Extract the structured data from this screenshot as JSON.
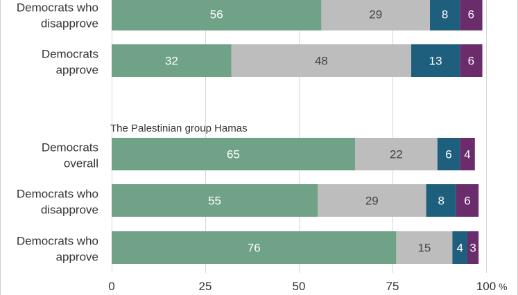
{
  "chart_data": {
    "type": "bar",
    "orientation": "horizontal",
    "stacked": true,
    "xlim": [
      0,
      100
    ],
    "x_ticks": [
      "0",
      "25",
      "50",
      "75",
      "100"
    ],
    "x_tick_suffix": "%",
    "grid": true,
    "colors": [
      "#6fa287",
      "#bdbdbd",
      "#1e5f7d",
      "#6a2c6a"
    ],
    "label_colors": [
      "#ffffff",
      "#444444",
      "#ffffff",
      "#ffffff"
    ],
    "groups": [
      {
        "title": "",
        "rows": [
          {
            "label": [
              "Democrats who",
              "disapprove"
            ],
            "values": [
              56,
              29,
              8,
              6
            ]
          },
          {
            "label": [
              "Democrats",
              "approve"
            ],
            "values": [
              32,
              48,
              13,
              6
            ]
          }
        ]
      },
      {
        "title": "The Palestinian group Hamas",
        "rows": [
          {
            "label": [
              "Democrats",
              "overall"
            ],
            "values": [
              65,
              22,
              6,
              4
            ]
          },
          {
            "label": [
              "Democrats who",
              "disapprove"
            ],
            "values": [
              55,
              29,
              8,
              6
            ]
          },
          {
            "label": [
              "Democrats who",
              "approve"
            ],
            "values": [
              76,
              15,
              4,
              3
            ]
          }
        ]
      }
    ]
  }
}
